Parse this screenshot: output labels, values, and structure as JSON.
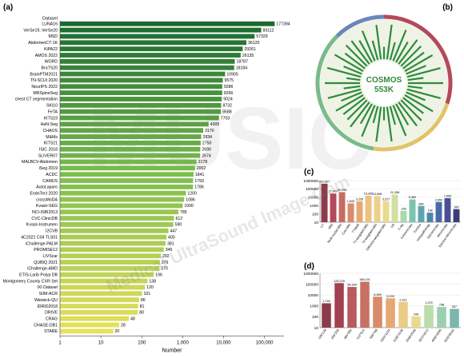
{
  "chart_data": [
    {
      "panel": "(a)",
      "type": "bar",
      "orientation": "horizontal",
      "xscale": "log",
      "xlabel": "Number",
      "xticks": [
        "1",
        "10",
        "100",
        "1,000",
        "10,000",
        "100,000"
      ],
      "xlim": [
        1,
        300000
      ],
      "categories": [
        "LUNA16",
        "VerSe19, VerSe20",
        "MSD",
        "AbdomenCT-1K",
        "KiPA22",
        "AMOS 2022",
        "WORD",
        "BraTS20",
        "BrainPTM2021",
        "TN-SCUI 2020",
        "NeurIPS 2022",
        "MRSpineSeg",
        "chest CT segmentation",
        "SKI10",
        "FeTA",
        "KITS19",
        "HaN-Seg",
        "CHAOS",
        "M&Ms",
        "KITS21",
        "ISIC 2018",
        "SLIVER07",
        "MALBCV-Abdomen",
        "iSeg 2019",
        "ACDC",
        "CAMUS",
        "AutoLaparo",
        "EndoTect 2020",
        "crossMoDA",
        "Kvasir-SEG",
        "NCI-ISBI2013",
        "CVC-ClinicDB",
        "Kvasir-Instrumen",
        "I2CVB",
        "4C2021 C04 TLS01",
        "iChallenge-PALM",
        "PROMISE12",
        "LIVScar",
        "QUBIQ 2021",
        "iChallenge-AMD",
        "ETIS-Larib Polyp DB",
        "Montgomery County CXR Set",
        "IXI Dataset",
        "SIIM-ACR",
        "Warwick-QU",
        "IDRID2018",
        "DRIVE",
        "CRAG",
        "CHASE-DB1",
        "STARE"
      ],
      "values": [
        177394,
        83112,
        57329,
        36120,
        29261,
        26135,
        18787,
        18184,
        10905,
        9575,
        9286,
        9266,
        9024,
        8732,
        8588,
        7703,
        4305,
        3170,
        2834,
        2750,
        2690,
        2674,
        2178,
        2002,
        1841,
        1793,
        1786,
        1200,
        1086,
        1000,
        785,
        612,
        590,
        447,
        400,
        381,
        345,
        292,
        276,
        270,
        196,
        138,
        120,
        101,
        86,
        81,
        80,
        48,
        28,
        20
      ],
      "value_labels": [
        "177394",
        "83112",
        "57329",
        "36120",
        "29261",
        "26135",
        "18787",
        "18184",
        "10905",
        "9575",
        "9286",
        "9266",
        "9024",
        "8732",
        "8588",
        "7703",
        "4305",
        "3170",
        "2834",
        "2750",
        "2690",
        "2674",
        "2178",
        "2002",
        "1841",
        "1793",
        "1786",
        "1200",
        "1086",
        "1000",
        "785",
        "612",
        "590",
        "447",
        "400",
        "381",
        "345",
        "292",
        "276",
        "270",
        "196",
        "138",
        "120",
        "101",
        "86",
        "81",
        "80",
        "48",
        "28",
        "20"
      ],
      "header_label": "Dataset",
      "colors": {
        "start": "#1a6b2f",
        "mid": "#7fbf4f",
        "end": "#e8e05a"
      }
    },
    {
      "panel": "(b)",
      "type": "radial",
      "center_title": "COSMOS",
      "center_subtitle": "553K",
      "ring_colors": [
        "#6b86b8",
        "#b24a5a",
        "#e3c36a",
        "#7aba8a"
      ],
      "spoke_color": "#2e8b3a"
    },
    {
      "panel": "(c)",
      "type": "bar",
      "yscale": "log",
      "ylim": [
        10,
        1000000
      ],
      "yticks": [
        "1000000",
        "100000",
        "10000",
        "1000",
        "100",
        "10"
      ],
      "categories": [
        "CT",
        "MRI",
        "Multi-modal MRI",
        "Cine MRI",
        "TTSMR",
        "T1-weighted MRI",
        "T2-weighted MRI",
        "Diffusion-weighted MRI",
        "US",
        "X-ray",
        "Colonoscopy",
        "Fundus",
        "Histopathology",
        "Dermoscopy",
        "Microscopy",
        "Electron Microscopy"
      ],
      "values": [
        422807,
        27450,
        40996,
        1843,
        3226,
        15305,
        13658,
        3227,
        21358,
        228,
        5382,
        860,
        138,
        2650,
        7655,
        360
      ],
      "value_labels": [
        "422,807",
        "27,450",
        "40,996",
        "1,843",
        "3,226",
        "15,305",
        "13,658",
        "3,227",
        "21,358",
        "228",
        "5,382",
        "860",
        "138",
        "2,650",
        "7,655",
        "360"
      ],
      "colors": [
        "#8c3b4a",
        "#b24a5a",
        "#c96b63",
        "#d98a6a",
        "#e6a873",
        "#edc27e",
        "#efd08a",
        "#e9da8e",
        "#cfe0a0",
        "#a8d8b0",
        "#7cc4b0",
        "#5aa6b0",
        "#4c86ad",
        "#4a6aa6",
        "#4a4f93",
        "#3d3a78"
      ]
    },
    {
      "panel": "(d)",
      "type": "bar",
      "yscale": "log",
      "ylim": [
        10,
        1000000
      ],
      "yticks": [
        "1000000",
        "100000",
        "10000",
        "1000",
        "100",
        "10"
      ],
      "categories": [
        "128*128",
        "256*256",
        "384*384",
        "512*512",
        "768*768",
        "1024*1024",
        "1536*1536",
        "2048*2048",
        "3072*3072",
        "4096*4096",
        "8192*8192"
      ],
      "values": [
        1746,
        125229,
        55334,
        168191,
        6989,
        5009,
        2311,
        108,
        1229,
        798,
        537
      ],
      "value_labels": [
        "1,746",
        "125,229",
        "55,334",
        "168,191",
        "6,989",
        "5,009",
        "2,311",
        "108",
        "1,229",
        "798",
        "537"
      ],
      "colors": [
        "#8c3b4a",
        "#a4404f",
        "#b95a5e",
        "#c87064",
        "#d98a6a",
        "#e6a873",
        "#eccb86",
        "#e9da8e",
        "#bcdcaa",
        "#9bcfb2",
        "#7cb6ad"
      ]
    }
  ],
  "panel_labels": {
    "a": "(a)",
    "b": "(b)",
    "c": "(c)",
    "d": "(d)"
  },
  "watermark": "Medical UltraSound Image Com",
  "watermark_big": "MUSIC"
}
